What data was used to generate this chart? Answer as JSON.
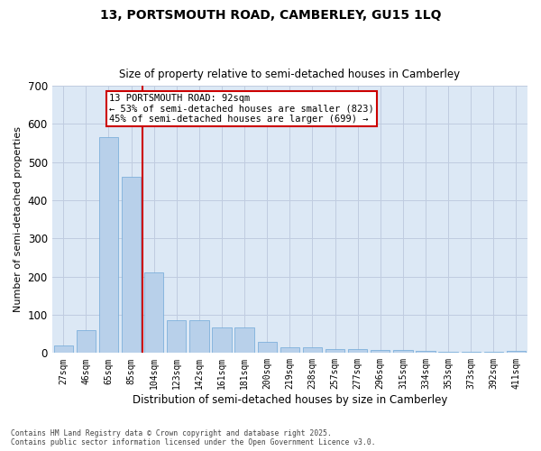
{
  "title_line1": "13, PORTSMOUTH ROAD, CAMBERLEY, GU15 1LQ",
  "title_line2": "Size of property relative to semi-detached houses in Camberley",
  "xlabel": "Distribution of semi-detached houses by size in Camberley",
  "ylabel": "Number of semi-detached properties",
  "bar_color": "#b8d0ea",
  "bar_edge_color": "#6fa8d8",
  "bg_color": "#dce8f5",
  "categories": [
    "27sqm",
    "46sqm",
    "65sqm",
    "85sqm",
    "104sqm",
    "123sqm",
    "142sqm",
    "161sqm",
    "181sqm",
    "200sqm",
    "219sqm",
    "238sqm",
    "257sqm",
    "277sqm",
    "296sqm",
    "315sqm",
    "334sqm",
    "353sqm",
    "373sqm",
    "392sqm",
    "411sqm"
  ],
  "bar_values": [
    20,
    60,
    565,
    460,
    210,
    85,
    85,
    68,
    68,
    30,
    15,
    15,
    10,
    10,
    8,
    8,
    5,
    3,
    2,
    2,
    5
  ],
  "ylim": [
    0,
    700
  ],
  "yticks": [
    0,
    100,
    200,
    300,
    400,
    500,
    600,
    700
  ],
  "vline_pos": 3.5,
  "vline_color": "#cc0000",
  "annotation_title": "13 PORTSMOUTH ROAD: 92sqm",
  "annotation_line2": "← 53% of semi-detached houses are smaller (823)",
  "annotation_line3": "45% of semi-detached houses are larger (699) →",
  "annotation_box_color": "#cc0000",
  "footer_line1": "Contains HM Land Registry data © Crown copyright and database right 2025.",
  "footer_line2": "Contains public sector information licensed under the Open Government Licence v3.0.",
  "grid_color": "#c0cce0"
}
